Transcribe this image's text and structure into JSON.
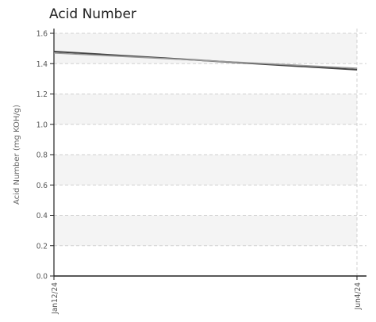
{
  "chart_data": {
    "type": "line",
    "title": "Acid Number",
    "xlabel": "",
    "ylabel": "Acid Number (mg KOH/g)",
    "x": [
      "Jan12/24",
      "Jun4/24"
    ],
    "series": [
      {
        "values": [
          1.48,
          1.36
        ]
      },
      {
        "values": [
          1.47,
          1.37
        ]
      }
    ],
    "ylim": [
      0,
      1.6
    ],
    "yticks": [
      "0.0",
      "0.2",
      "0.4",
      "0.6",
      "0.8",
      "1.0",
      "1.2",
      "1.4",
      "1.6"
    ],
    "xticks": [
      "Jan12/24",
      "Jun4/24"
    ],
    "grid": true,
    "colors": {
      "line": "#444444",
      "line_shadow": "#999999",
      "band": "#f4f4f4",
      "grid": "#d0d0d0",
      "axis": "#222222"
    }
  }
}
